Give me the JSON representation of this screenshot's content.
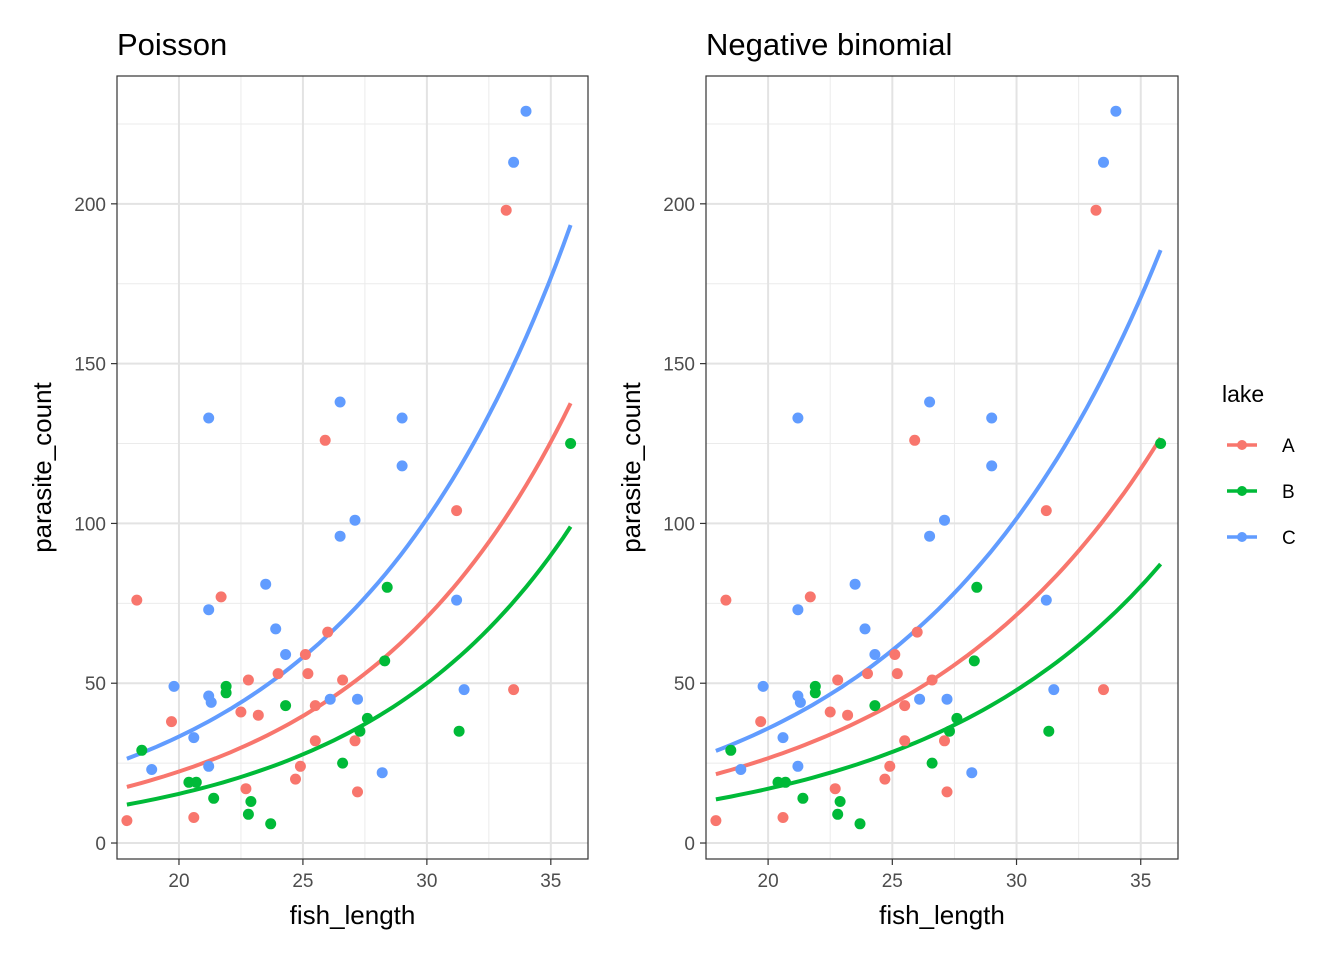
{
  "chart_data": [
    {
      "type": "scatter",
      "title": "Poisson",
      "xlabel": "fish_length",
      "ylabel": "parasite_count",
      "xlim": [
        17.5,
        36.5
      ],
      "ylim": [
        -5,
        240
      ],
      "xticks": [
        20,
        25,
        30,
        35
      ],
      "yticks": [
        0,
        50,
        100,
        150,
        200
      ],
      "grid": true,
      "series": [
        {
          "name": "A",
          "color": "#F8766D",
          "points": [
            [
              17.9,
              7
            ],
            [
              18.3,
              76
            ],
            [
              19.7,
              38
            ],
            [
              20.6,
              8
            ],
            [
              21.7,
              77
            ],
            [
              22.5,
              41
            ],
            [
              22.7,
              17
            ],
            [
              22.8,
              51
            ],
            [
              23.2,
              40
            ],
            [
              24.0,
              53
            ],
            [
              24.7,
              20
            ],
            [
              24.9,
              24
            ],
            [
              25.1,
              59
            ],
            [
              25.2,
              53
            ],
            [
              25.5,
              43
            ],
            [
              25.5,
              32
            ],
            [
              25.9,
              126
            ],
            [
              26.0,
              66
            ],
            [
              26.6,
              51
            ],
            [
              27.1,
              32
            ],
            [
              27.2,
              16
            ],
            [
              31.2,
              104
            ],
            [
              33.2,
              198
            ],
            [
              33.5,
              48
            ]
          ],
          "fit": {
            "intercept": 0.8076,
            "slope": 0.115
          }
        },
        {
          "name": "B",
          "color": "#00BA38",
          "points": [
            [
              18.5,
              29
            ],
            [
              20.4,
              19
            ],
            [
              20.7,
              19
            ],
            [
              21.4,
              14
            ],
            [
              21.9,
              47
            ],
            [
              21.9,
              49
            ],
            [
              22.8,
              9
            ],
            [
              22.9,
              13
            ],
            [
              23.7,
              6
            ],
            [
              24.3,
              43
            ],
            [
              26.6,
              25
            ],
            [
              27.3,
              35
            ],
            [
              27.6,
              39
            ],
            [
              28.3,
              57
            ],
            [
              28.4,
              80
            ],
            [
              31.3,
              35
            ],
            [
              35.8,
              125
            ]
          ],
          "fit": {
            "intercept": 0.3778,
            "slope": 0.1178
          }
        },
        {
          "name": "C",
          "color": "#619CFF",
          "points": [
            [
              18.9,
              23
            ],
            [
              19.8,
              49
            ],
            [
              20.6,
              33
            ],
            [
              21.2,
              24
            ],
            [
              21.2,
              73
            ],
            [
              21.2,
              133
            ],
            [
              21.2,
              46
            ],
            [
              21.3,
              44
            ],
            [
              23.5,
              81
            ],
            [
              23.9,
              67
            ],
            [
              24.3,
              59
            ],
            [
              26.1,
              45
            ],
            [
              26.5,
              96
            ],
            [
              26.5,
              138
            ],
            [
              27.1,
              101
            ],
            [
              27.2,
              45
            ],
            [
              28.2,
              22
            ],
            [
              29.0,
              118
            ],
            [
              29.0,
              133
            ],
            [
              31.2,
              76
            ],
            [
              31.5,
              48
            ],
            [
              33.5,
              213
            ],
            [
              34.0,
              229
            ]
          ],
          "fit": {
            "intercept": 1.28,
            "slope": 0.1113
          }
        }
      ]
    },
    {
      "type": "scatter",
      "title": "Negative binomial",
      "xlabel": "fish_length",
      "ylabel": "parasite_count",
      "xlim": [
        17.5,
        36.5
      ],
      "ylim": [
        -5,
        240
      ],
      "xticks": [
        20,
        25,
        30,
        35
      ],
      "yticks": [
        0,
        50,
        100,
        150,
        200
      ],
      "grid": true,
      "series": [
        {
          "name": "A",
          "color": "#F8766D",
          "points": [
            [
              17.9,
              7
            ],
            [
              18.3,
              76
            ],
            [
              19.7,
              38
            ],
            [
              20.6,
              8
            ],
            [
              21.7,
              77
            ],
            [
              22.5,
              41
            ],
            [
              22.7,
              17
            ],
            [
              22.8,
              51
            ],
            [
              23.2,
              40
            ],
            [
              24.0,
              53
            ],
            [
              24.7,
              20
            ],
            [
              24.9,
              24
            ],
            [
              25.1,
              59
            ],
            [
              25.2,
              53
            ],
            [
              25.5,
              43
            ],
            [
              25.5,
              32
            ],
            [
              25.9,
              126
            ],
            [
              26.0,
              66
            ],
            [
              26.6,
              51
            ],
            [
              27.1,
              32
            ],
            [
              27.2,
              16
            ],
            [
              31.2,
              104
            ],
            [
              33.2,
              198
            ],
            [
              33.5,
              48
            ]
          ],
          "fit": {
            "intercept": 1.298,
            "slope": 0.099
          }
        },
        {
          "name": "B",
          "color": "#00BA38",
          "points": [
            [
              18.5,
              29
            ],
            [
              20.4,
              19
            ],
            [
              20.7,
              19
            ],
            [
              21.4,
              14
            ],
            [
              21.9,
              47
            ],
            [
              21.9,
              49
            ],
            [
              22.8,
              9
            ],
            [
              22.9,
              13
            ],
            [
              23.7,
              6
            ],
            [
              24.3,
              43
            ],
            [
              26.6,
              25
            ],
            [
              27.3,
              35
            ],
            [
              27.6,
              39
            ],
            [
              28.3,
              57
            ],
            [
              28.4,
              80
            ],
            [
              31.3,
              35
            ],
            [
              35.8,
              125
            ]
          ],
          "fit": {
            "intercept": 0.76,
            "slope": 0.1036
          }
        },
        {
          "name": "C",
          "color": "#619CFF",
          "points": [
            [
              18.9,
              23
            ],
            [
              19.8,
              49
            ],
            [
              20.6,
              33
            ],
            [
              21.2,
              24
            ],
            [
              21.2,
              73
            ],
            [
              21.2,
              133
            ],
            [
              21.2,
              46
            ],
            [
              21.3,
              44
            ],
            [
              23.5,
              81
            ],
            [
              23.9,
              67
            ],
            [
              24.3,
              59
            ],
            [
              26.1,
              45
            ],
            [
              26.5,
              96
            ],
            [
              26.5,
              138
            ],
            [
              27.1,
              101
            ],
            [
              27.2,
              45
            ],
            [
              28.2,
              22
            ],
            [
              29.0,
              118
            ],
            [
              29.0,
              133
            ],
            [
              31.2,
              76
            ],
            [
              31.5,
              48
            ],
            [
              33.5,
              213
            ],
            [
              34.0,
              229
            ]
          ],
          "fit": {
            "intercept": 1.5,
            "slope": 0.104
          }
        }
      ]
    }
  ],
  "legend": {
    "title": "lake",
    "position": "right",
    "entries": [
      {
        "label": "A",
        "color": "#F8766D"
      },
      {
        "label": "B",
        "color": "#00BA38"
      },
      {
        "label": "C",
        "color": "#619CFF"
      }
    ]
  },
  "fit_x_range": [
    17.9,
    35.8
  ]
}
